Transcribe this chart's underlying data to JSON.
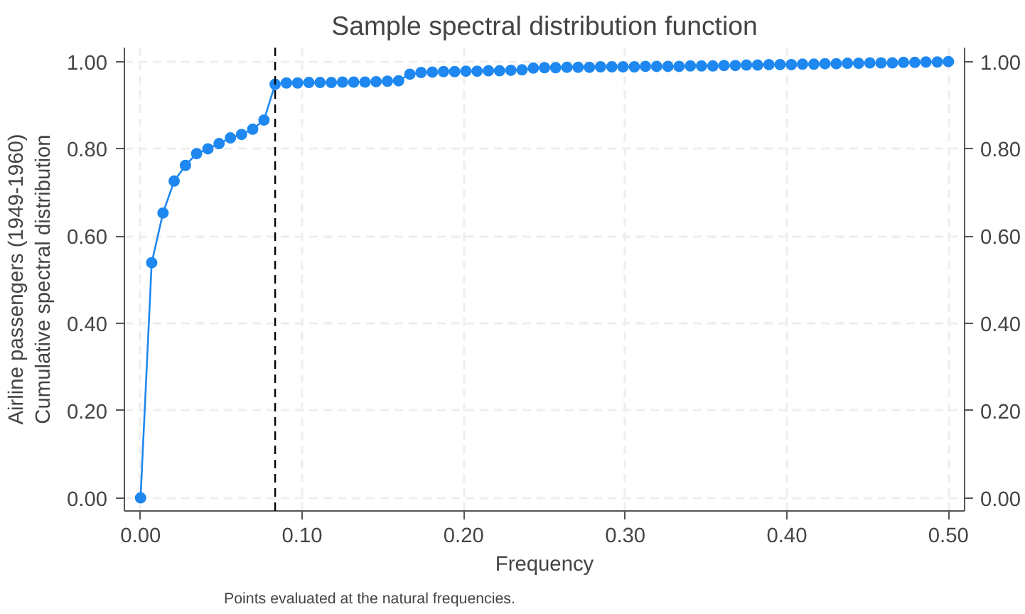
{
  "chart_data": {
    "type": "line",
    "title": "Sample spectral distribution function",
    "xlabel": "Frequency",
    "ylabel": "Airline passengers (1949-1960)\nCumulative spectral distribution",
    "annotations": [
      "Points evaluated at the natural frequencies."
    ],
    "x": [
      0,
      0.0069,
      0.0139,
      0.0208,
      0.0278,
      0.0347,
      0.0417,
      0.0486,
      0.0556,
      0.0625,
      0.0694,
      0.0764,
      0.0833,
      0.0903,
      0.0972,
      0.1042,
      0.1111,
      0.1181,
      0.125,
      0.1319,
      0.1389,
      0.1458,
      0.1528,
      0.1597,
      0.1667,
      0.1736,
      0.1806,
      0.1875,
      0.1944,
      0.2014,
      0.2083,
      0.2153,
      0.2222,
      0.2292,
      0.2361,
      0.2431,
      0.25,
      0.2569,
      0.2639,
      0.2708,
      0.2778,
      0.2847,
      0.2917,
      0.2986,
      0.3056,
      0.3125,
      0.3194,
      0.3264,
      0.3333,
      0.3403,
      0.3472,
      0.3542,
      0.3611,
      0.3681,
      0.375,
      0.3819,
      0.3889,
      0.3958,
      0.4028,
      0.4097,
      0.4167,
      0.4236,
      0.4306,
      0.4375,
      0.4444,
      0.4514,
      0.4583,
      0.4653,
      0.4722,
      0.4792,
      0.4861,
      0.4931,
      0.5
    ],
    "series": [
      {
        "color": "#1e88f0",
        "values": [
          0,
          0.539,
          0.653,
          0.726,
          0.762,
          0.789,
          0.8,
          0.812,
          0.825,
          0.833,
          0.845,
          0.866,
          0.948,
          0.951,
          0.951,
          0.952,
          0.952,
          0.952,
          0.953,
          0.953,
          0.953,
          0.954,
          0.955,
          0.956,
          0.971,
          0.975,
          0.976,
          0.977,
          0.977,
          0.978,
          0.978,
          0.979,
          0.979,
          0.98,
          0.981,
          0.985,
          0.986,
          0.986,
          0.987,
          0.987,
          0.987,
          0.988,
          0.988,
          0.988,
          0.988,
          0.989,
          0.989,
          0.989,
          0.989,
          0.99,
          0.99,
          0.99,
          0.991,
          0.991,
          0.992,
          0.992,
          0.993,
          0.993,
          0.993,
          0.994,
          0.994,
          0.995,
          0.995,
          0.996,
          0.996,
          0.997,
          0.997,
          0.997,
          0.998,
          0.998,
          0.999,
          0.999,
          1.0
        ]
      }
    ],
    "xlim": [
      -0.01,
      0.51
    ],
    "ylim": [
      -0.03,
      1.032
    ],
    "y2lim": [
      -0.03,
      1.032
    ],
    "xticks": [
      {
        "value": 0,
        "label": "0.00"
      },
      {
        "value": 0.1,
        "label": "0.10"
      },
      {
        "value": 0.2,
        "label": "0.20"
      },
      {
        "value": 0.3,
        "label": "0.30"
      },
      {
        "value": 0.4,
        "label": "0.40"
      },
      {
        "value": 0.5,
        "label": "0.50"
      }
    ],
    "yticks": [
      {
        "value": 0,
        "label": "0.00"
      },
      {
        "value": 0.2,
        "label": "0.20"
      },
      {
        "value": 0.4,
        "label": "0.40"
      },
      {
        "value": 0.6,
        "label": "0.60"
      },
      {
        "value": 0.8,
        "label": "0.80"
      },
      {
        "value": 1,
        "label": "1.00"
      }
    ],
    "y2ticks": [
      {
        "value": 0,
        "label": "0.00"
      },
      {
        "value": 0.2,
        "label": "0.20"
      },
      {
        "value": 0.4,
        "label": "0.40"
      },
      {
        "value": 0.6,
        "label": "0.60"
      },
      {
        "value": 0.8,
        "label": "0.80"
      },
      {
        "value": 1,
        "label": "1.00"
      }
    ],
    "ref_lines": [
      {
        "axis": "x",
        "value": 0.0833,
        "color": "#000000",
        "line_style": "dashed"
      }
    ],
    "grid": true,
    "marker": "circle",
    "line_style": "solid"
  }
}
